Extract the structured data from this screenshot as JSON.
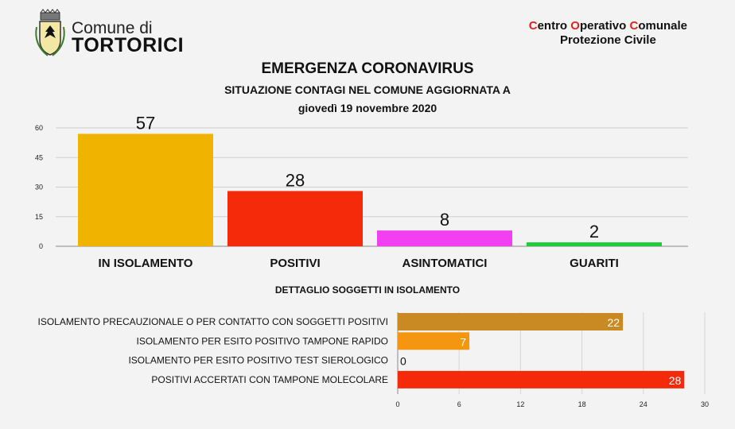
{
  "header": {
    "comune_prefix": "Comune di",
    "comune_name": "TORTORICI",
    "coc_letter_c1": "C",
    "coc_rest1": "entro ",
    "coc_letter_o": "O",
    "coc_rest2": "perativo ",
    "coc_letter_c2": "C",
    "coc_rest3": "omunale",
    "coc_line2": "Protezione Civile"
  },
  "title": "EMERGENZA CORONAVIRUS",
  "subtitle": "SITUAZIONE CONTAGI NEL COMUNE AGGIORNATA A",
  "date": "giovedì 19 novembre 2020",
  "detail_title": "DETTAGLIO SOGGETTI IN ISOLAMENTO",
  "colors": {
    "accent_red": "#e2231a"
  },
  "chart_data": [
    {
      "type": "bar",
      "orientation": "vertical",
      "categories": [
        "IN ISOLAMENTO",
        "POSITIVI",
        "ASINTOMATICI",
        "GUARITI"
      ],
      "values": [
        57,
        28,
        8,
        2
      ],
      "colors": [
        "#f0b400",
        "#f52a0a",
        "#f23ff2",
        "#1fcc3a"
      ],
      "ylim": [
        0,
        60
      ],
      "yticks": [
        0,
        15,
        30,
        45,
        60
      ],
      "grid": true
    },
    {
      "type": "bar",
      "orientation": "horizontal",
      "categories": [
        "ISOLAMENTO PRECAUZIONALE O PER CONTATTO CON SOGGETTI POSITIVI",
        "ISOLAMENTO PER ESITO POSITIVO TAMPONE RAPIDO",
        "ISOLAMENTO PER ESITO POSITIVO TEST SIEROLOGICO",
        "POSITIVI ACCERTATI CON TAMPONE MOLECOLARE"
      ],
      "values": [
        22,
        7,
        0,
        28
      ],
      "colors": [
        "#c98a24",
        "#f4960f",
        "#999999",
        "#f52a0a"
      ],
      "xlim": [
        0,
        30
      ],
      "xticks": [
        0,
        6,
        12,
        18,
        24,
        30
      ],
      "grid": true
    }
  ]
}
